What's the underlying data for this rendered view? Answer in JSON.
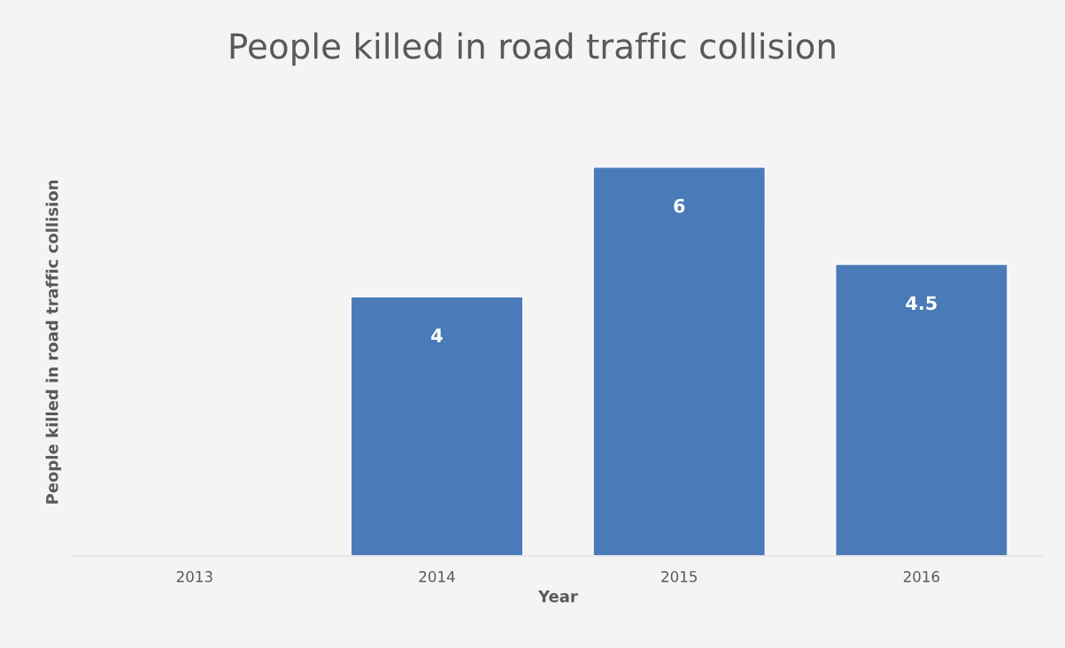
{
  "chart_data": {
    "type": "bar",
    "title": "People killed in road traffic collision",
    "xlabel": "Year",
    "ylabel": "People killed in road traffic collision",
    "categories": [
      "2013",
      "2014",
      "2015",
      "2016"
    ],
    "values": [
      null,
      4,
      6,
      4.5
    ],
    "color": "#4a7bb8",
    "data_labels": true,
    "grid": false,
    "tick_labels": "x"
  }
}
